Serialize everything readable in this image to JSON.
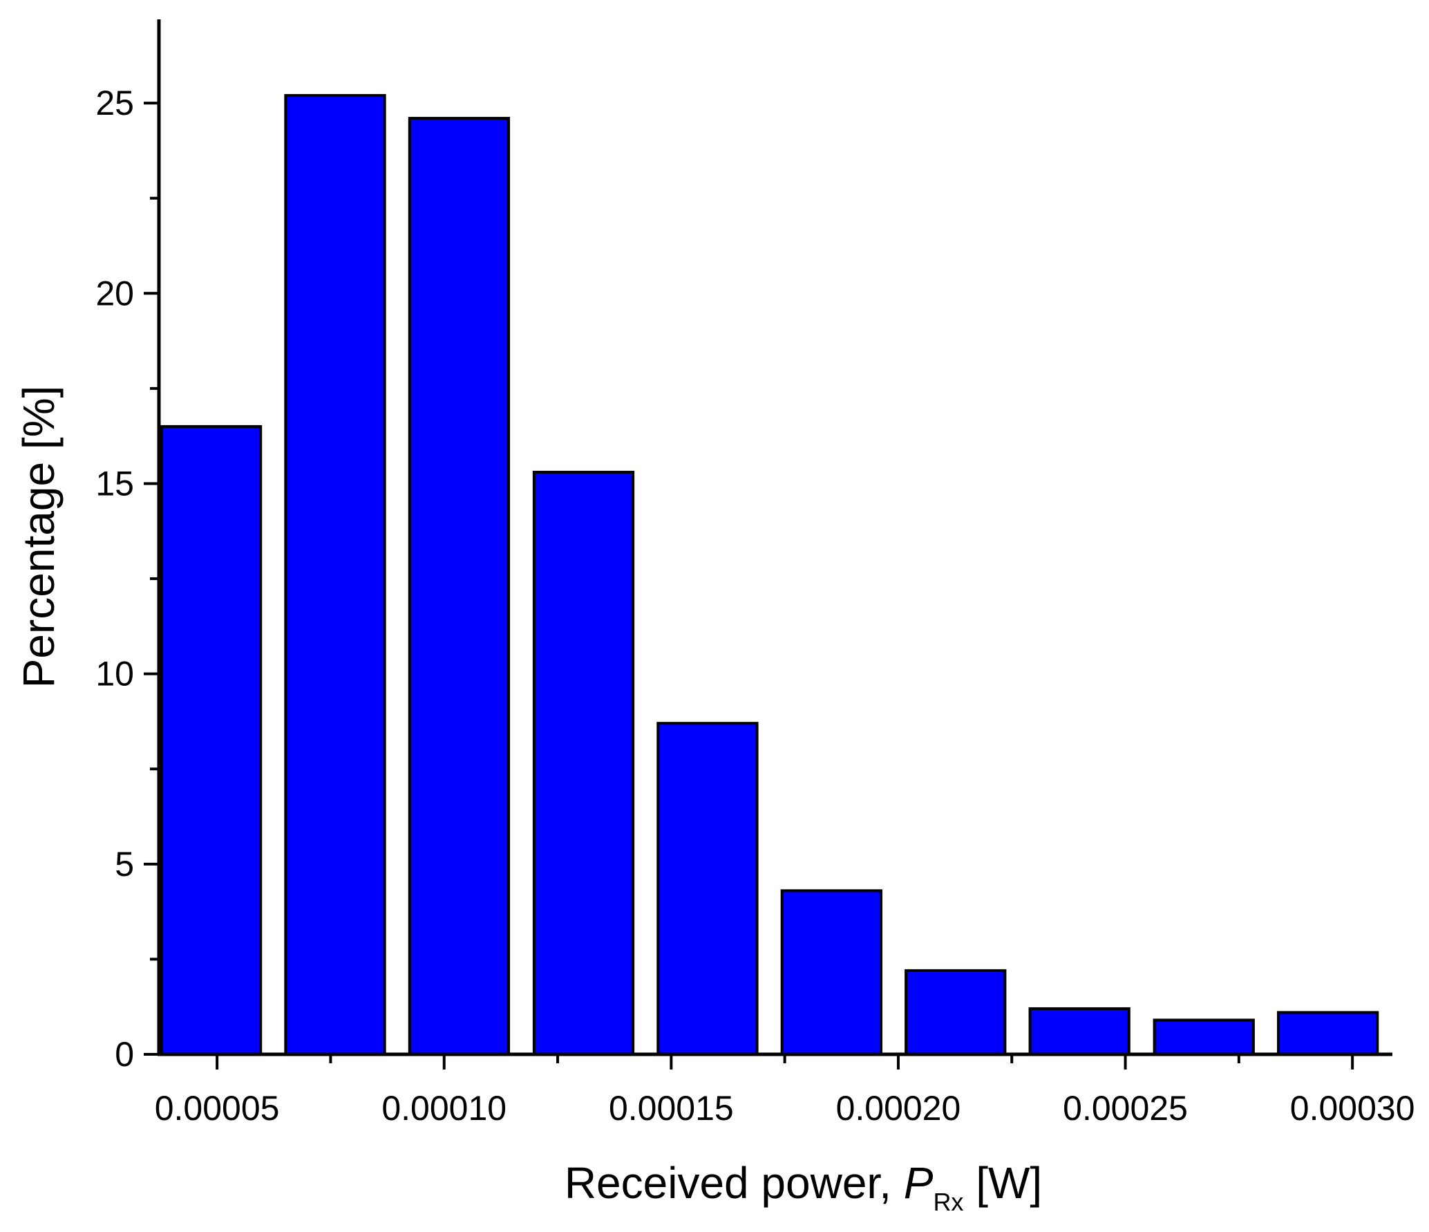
{
  "chart_data": {
    "type": "bar",
    "xlabel": {
      "main": "Received power, ",
      "symbol": "P",
      "subscript": "Rx",
      "unit": " [W]"
    },
    "ylabel": "Percentage [%]",
    "ylim": [
      0,
      27.2
    ],
    "xlim": [
      3.72e-05,
      0.0003088
    ],
    "bar_width": 2.18e-05,
    "x_ticks": [
      {
        "value": 5e-05,
        "label": "0.00005"
      },
      {
        "value": 0.0001,
        "label": "0.00010"
      },
      {
        "value": 0.00015,
        "label": "0.00015"
      },
      {
        "value": 0.0002,
        "label": "0.00020"
      },
      {
        "value": 0.00025,
        "label": "0.00025"
      },
      {
        "value": 0.0003,
        "label": "0.00030"
      }
    ],
    "x_minor_ticks": [
      7.5e-05,
      0.000125,
      0.000175,
      0.000225,
      0.000275
    ],
    "y_ticks": [
      {
        "value": 0,
        "label": "0"
      },
      {
        "value": 5,
        "label": "5"
      },
      {
        "value": 10,
        "label": "10"
      },
      {
        "value": 15,
        "label": "15"
      },
      {
        "value": 20,
        "label": "20"
      },
      {
        "value": 25,
        "label": "25"
      }
    ],
    "y_minor_ticks": [
      2.5,
      7.5,
      12.5,
      17.5,
      22.5
    ],
    "bars": [
      {
        "x": 4.87e-05,
        "value": 16.5
      },
      {
        "x": 7.6e-05,
        "value": 25.2
      },
      {
        "x": 0.0001033,
        "value": 24.6
      },
      {
        "x": 0.0001307,
        "value": 15.3
      },
      {
        "x": 0.000158,
        "value": 8.7
      },
      {
        "x": 0.0001853,
        "value": 4.3
      },
      {
        "x": 0.0002126,
        "value": 2.2
      },
      {
        "x": 0.0002399,
        "value": 1.2
      },
      {
        "x": 0.0002673,
        "value": 0.9
      },
      {
        "x": 0.0002946,
        "value": 1.1
      }
    ],
    "bar_color": "#0000ff",
    "edge_color": "#000000",
    "grid": false,
    "legend": "none"
  }
}
